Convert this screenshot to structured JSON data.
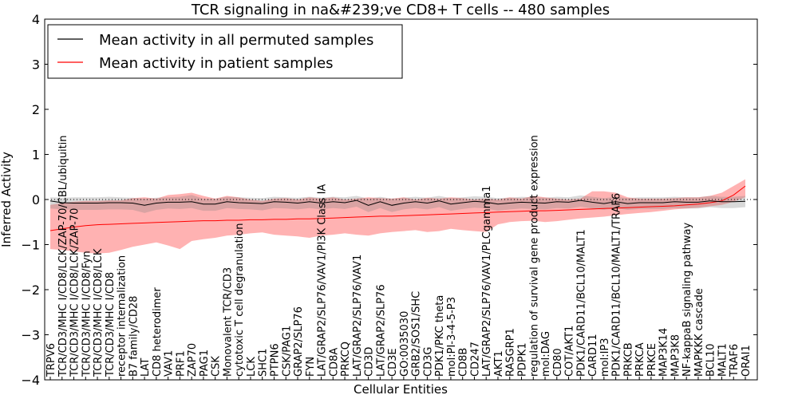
{
  "chart_data": {
    "type": "line",
    "title": "TCR signaling in na&#239;ve CD8+ T cells -- 480 samples",
    "xlabel": "Cellular Entities",
    "ylabel": "Inferred Activity",
    "ylim": [
      -4,
      4
    ],
    "yticks": [
      -4,
      -3,
      -2,
      -1,
      0,
      1,
      2,
      3,
      4
    ],
    "legend": {
      "position": "top-left",
      "entries": [
        {
          "label": "Mean activity in all permuted samples",
          "color": "#000000"
        },
        {
          "label": "Mean activity in patient samples",
          "color": "#ff0000"
        }
      ]
    },
    "zero_line": 0,
    "entities": [
      "TRPV6",
      "TCR/CD3/MHC I/CD8/LCK/ZAP-70/CBL/ubiquitin",
      "TCR/CD3/MHC I/CD8/LCK/ZAP-70",
      "TCR/CD3/MHC I/CD8/Fyn",
      "TCR/CD3/MHC I/CD8/LCK",
      "TCR/CD3/MHC I/CD8",
      "receptor internalization",
      "B7 family/CD28",
      "LAT",
      "CD8 heterodimer",
      "VAV1",
      "PRF1",
      "ZAP70",
      "PAG1",
      "CSK",
      "Monovalent TCR/CD3",
      "cytotoxic T cell degranulation",
      "LCK",
      "SHC1",
      "PTPN6",
      "CSK/PAG1",
      "GRAP2/SLP76",
      "FYN",
      "LAT/GRAP2/SLP76/VAV1/PI3K Class IA",
      "CD8A",
      "PRKCQ",
      "LAT/GRAP2/SLP76/VAV1",
      "CD3D",
      "LAT/GRAP2/SLP76",
      "CD3E",
      "GO:0035030",
      "GRB2/SOS1/SHC",
      "CD3G",
      "PDK1/PKC theta",
      "mol:PI-3-4-5-P3",
      "CD8B",
      "CD247",
      "LAT/GRAP2/SLP76/VAV1/PLCgamma1",
      "AKT1",
      "RASGRP1",
      "PDPK1",
      "regulation of survival gene product expression",
      "mol:DAG",
      "CD80",
      "COT/AKT1",
      "PDK1/CARD11/BCL10/MALT1",
      "CARD11",
      "mol:IP3",
      "PDK1/CARD11/BCL10/MALT1/TRAF6",
      "PRKCB",
      "PRKCA",
      "PRKCE",
      "MAP3K14",
      "MAP3K8",
      "NF-kappaB signaling pathway",
      "MAPKKK cascade",
      "BCL10",
      "MALT1",
      "TRAF6",
      "ORAI1"
    ],
    "series": [
      {
        "name": "Mean activity in all permuted samples",
        "color": "#000000",
        "values": [
          -0.03,
          -0.07,
          -0.08,
          -0.08,
          -0.08,
          -0.07,
          -0.07,
          -0.08,
          -0.13,
          -0.08,
          -0.06,
          -0.06,
          -0.05,
          -0.1,
          -0.1,
          -0.05,
          -0.07,
          -0.08,
          -0.09,
          -0.05,
          -0.06,
          -0.08,
          -0.05,
          -0.08,
          -0.05,
          -0.07,
          -0.02,
          -0.13,
          -0.05,
          -0.13,
          -0.08,
          -0.05,
          -0.08,
          -0.03,
          -0.1,
          -0.07,
          -0.04,
          -0.06,
          -0.1,
          -0.08,
          -0.06,
          -0.07,
          -0.08,
          -0.05,
          -0.06,
          -0.02,
          -0.06,
          -0.09,
          -0.05,
          -0.09,
          -0.07,
          -0.07,
          -0.07,
          -0.05,
          -0.06,
          -0.06,
          -0.03,
          -0.05,
          -0.05,
          -0.04
        ],
        "band_upper": [
          0.05,
          0.04,
          0.05,
          0.05,
          0.05,
          0.06,
          0.05,
          0.04,
          0.02,
          0.04,
          0.05,
          0.06,
          0.1,
          0.02,
          0.02,
          0.06,
          0.05,
          0.04,
          0.03,
          0.06,
          0.05,
          0.04,
          0.06,
          0.04,
          0.06,
          0.05,
          0.08,
          0.02,
          0.06,
          0.02,
          0.04,
          0.06,
          0.04,
          0.08,
          0.03,
          0.05,
          0.07,
          0.06,
          0.03,
          0.04,
          0.06,
          0.05,
          0.04,
          0.06,
          0.05,
          0.09,
          0.06,
          0.03,
          0.06,
          0.03,
          0.05,
          0.05,
          0.05,
          0.06,
          0.05,
          0.05,
          0.08,
          0.06,
          0.06,
          0.08
        ],
        "band_lower": [
          -0.2,
          -0.22,
          -0.23,
          -0.23,
          -0.23,
          -0.22,
          -0.22,
          -0.23,
          -0.3,
          -0.23,
          -0.2,
          -0.21,
          -0.19,
          -0.25,
          -0.25,
          -0.19,
          -0.21,
          -0.22,
          -0.24,
          -0.19,
          -0.2,
          -0.22,
          -0.19,
          -0.22,
          -0.19,
          -0.21,
          -0.16,
          -0.28,
          -0.19,
          -0.28,
          -0.22,
          -0.19,
          -0.22,
          -0.17,
          -0.25,
          -0.21,
          -0.18,
          -0.2,
          -0.25,
          -0.22,
          -0.2,
          -0.21,
          -0.22,
          -0.19,
          -0.2,
          -0.16,
          -0.2,
          -0.23,
          -0.19,
          -0.23,
          -0.21,
          -0.21,
          -0.21,
          -0.19,
          -0.2,
          -0.2,
          -0.17,
          -0.19,
          -0.19,
          -0.17
        ]
      },
      {
        "name": "Mean activity in patient samples",
        "color": "#ff0000",
        "values": [
          -0.69,
          -0.65,
          -0.61,
          -0.58,
          -0.56,
          -0.55,
          -0.54,
          -0.53,
          -0.52,
          -0.51,
          -0.5,
          -0.49,
          -0.48,
          -0.47,
          -0.47,
          -0.46,
          -0.46,
          -0.45,
          -0.45,
          -0.44,
          -0.44,
          -0.43,
          -0.43,
          -0.42,
          -0.41,
          -0.4,
          -0.39,
          -0.38,
          -0.37,
          -0.37,
          -0.36,
          -0.35,
          -0.34,
          -0.33,
          -0.32,
          -0.31,
          -0.3,
          -0.29,
          -0.28,
          -0.27,
          -0.26,
          -0.25,
          -0.25,
          -0.24,
          -0.23,
          -0.22,
          -0.21,
          -0.2,
          -0.19,
          -0.18,
          -0.17,
          -0.16,
          -0.15,
          -0.14,
          -0.12,
          -0.1,
          -0.07,
          -0.03,
          0.1,
          0.3
        ],
        "band_upper": [
          -0.12,
          -0.08,
          -0.05,
          -0.03,
          -0.03,
          -0.02,
          -0.02,
          0.03,
          0.05,
          0.02,
          0.1,
          0.12,
          0.15,
          0.08,
          0.02,
          0.08,
          0.05,
          0.0,
          -0.03,
          0.02,
          0.03,
          0.0,
          0.05,
          0.02,
          0.05,
          0.0,
          0.02,
          0.05,
          0.03,
          0.02,
          0.05,
          0.0,
          0.04,
          0.02,
          0.05,
          0.03,
          0.0,
          0.02,
          0.0,
          0.05,
          0.02,
          0.08,
          0.05,
          0.02,
          0.0,
          0.02,
          0.18,
          0.18,
          0.15,
          0.05,
          0.02,
          0.02,
          0.02,
          0.03,
          0.05,
          0.05,
          0.08,
          0.15,
          0.3,
          0.45
        ],
        "band_lower": [
          -1.1,
          -1.12,
          -1.15,
          -1.18,
          -1.2,
          -1.18,
          -1.12,
          -1.05,
          -1.0,
          -0.95,
          -1.02,
          -1.1,
          -0.92,
          -0.88,
          -0.85,
          -0.8,
          -0.78,
          -0.75,
          -0.73,
          -0.78,
          -0.8,
          -0.82,
          -0.85,
          -0.8,
          -0.78,
          -0.75,
          -0.78,
          -0.8,
          -0.75,
          -0.72,
          -0.7,
          -0.68,
          -0.72,
          -0.7,
          -0.65,
          -0.68,
          -0.7,
          -0.72,
          -0.55,
          -0.5,
          -0.48,
          -0.47,
          -0.5,
          -0.48,
          -0.45,
          -0.42,
          -0.4,
          -0.38,
          -0.35,
          -0.32,
          -0.3,
          -0.28,
          -0.25,
          -0.22,
          -0.2,
          -0.18,
          -0.15,
          -0.12,
          -0.05,
          0.05
        ]
      }
    ]
  }
}
